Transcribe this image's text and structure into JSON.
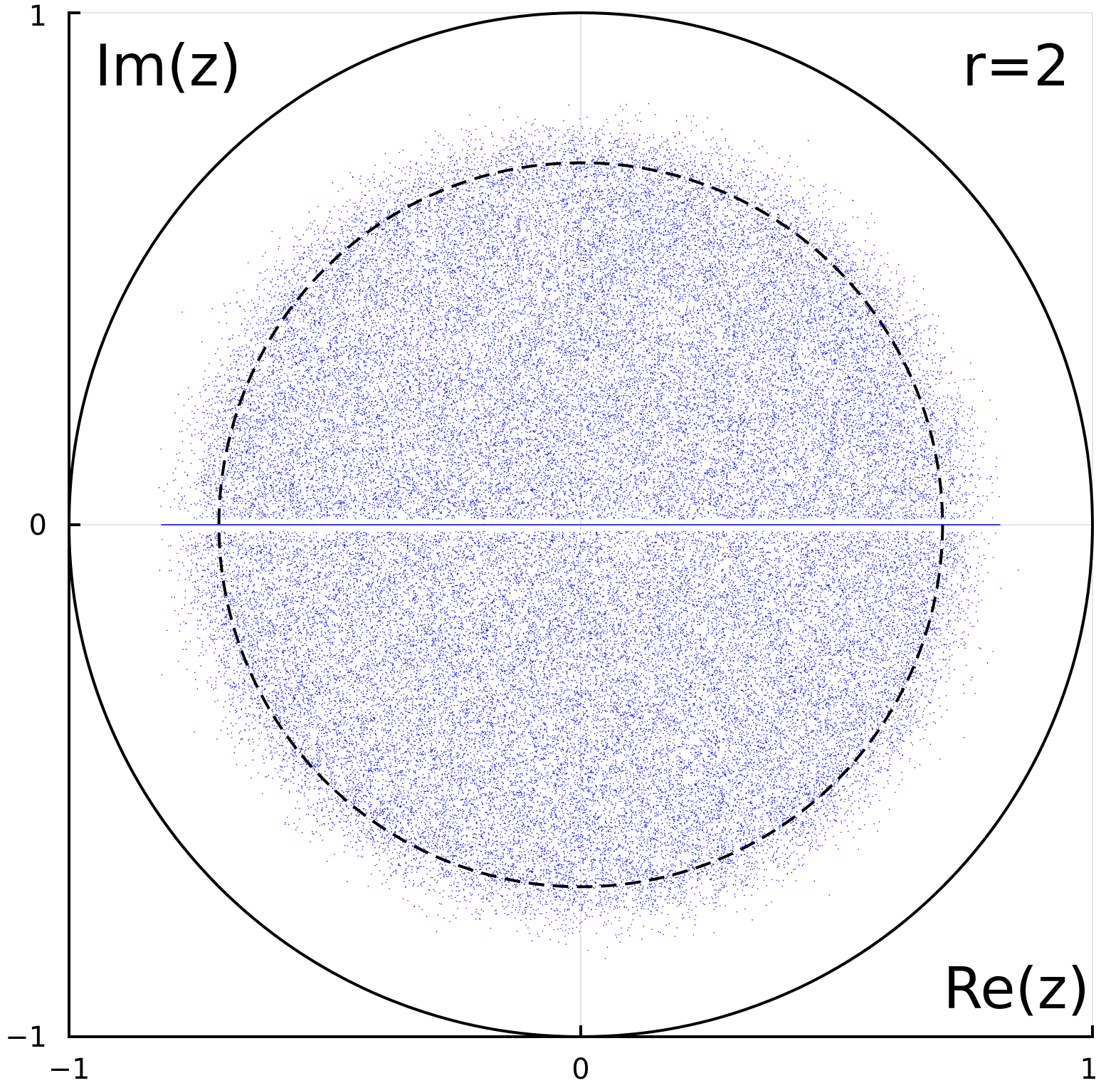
{
  "chart_data": {
    "type": "scatter",
    "title": "",
    "annotation": "r=2",
    "xlabel": "Re(z)",
    "ylabel": "Im(z)",
    "xlim": [
      -1,
      1
    ],
    "ylim": [
      -1,
      1
    ],
    "x_ticks": [
      -1,
      0,
      1
    ],
    "y_ticks": [
      -1,
      0,
      1
    ],
    "x_tick_labels": [
      "−1",
      "0",
      "1"
    ],
    "y_tick_labels": [
      "−1",
      "0",
      "1"
    ],
    "grid": true,
    "legend": "none",
    "colors": {
      "points": "#0000ff",
      "curves": "#000000",
      "grid": "#e6e6e6"
    },
    "reference_curves": [
      {
        "kind": "circle",
        "center": [
          0,
          0
        ],
        "radius": 1.0,
        "style": "solid"
      },
      {
        "kind": "circle",
        "center": [
          0,
          0
        ],
        "radius": 0.7071,
        "style": "dashed"
      }
    ],
    "series": [
      {
        "description_free": true,
        "distribution": "complex eigenvalue cloud, approximately uniform within radius 0.7071 with soft edge",
        "real_axis_segment": [
          -0.82,
          0.82
        ]
      }
    ]
  }
}
